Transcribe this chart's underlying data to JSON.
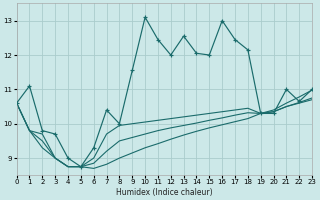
{
  "xlabel": "Humidex (Indice chaleur)",
  "bg_color": "#cce8e8",
  "grid_color": "#aacccc",
  "line_color": "#1a6b6b",
  "marker": "+",
  "xlim": [
    0,
    23
  ],
  "ylim": [
    8.5,
    13.5
  ],
  "xticks": [
    0,
    1,
    2,
    3,
    4,
    5,
    6,
    7,
    8,
    9,
    10,
    11,
    12,
    13,
    14,
    15,
    16,
    17,
    18,
    19,
    20,
    21,
    22,
    23
  ],
  "yticks": [
    9,
    10,
    11,
    12,
    13
  ],
  "x_main": [
    0,
    1,
    2,
    3,
    4,
    5,
    6,
    7,
    8,
    9,
    10,
    11,
    12,
    13,
    14,
    15,
    16,
    17,
    18,
    19,
    20,
    21,
    22,
    23
  ],
  "y_main": [
    10.6,
    11.1,
    9.8,
    9.7,
    9.0,
    8.75,
    9.3,
    10.4,
    10.0,
    11.55,
    13.1,
    12.45,
    12.0,
    12.55,
    12.05,
    12.0,
    13.0,
    12.45,
    12.15,
    10.3,
    10.3,
    11.0,
    10.65,
    11.0
  ],
  "y_trend_a": [
    10.6,
    9.8,
    9.7,
    9.0,
    8.75,
    8.75,
    9.0,
    9.7,
    9.95,
    10.0,
    10.05,
    10.1,
    10.15,
    10.2,
    10.25,
    10.3,
    10.35,
    10.4,
    10.45,
    10.3,
    10.35,
    10.5,
    10.6,
    10.7
  ],
  "y_trend_b": [
    10.6,
    9.8,
    9.5,
    9.0,
    8.75,
    8.75,
    8.85,
    9.2,
    9.5,
    9.6,
    9.7,
    9.8,
    9.88,
    9.95,
    10.02,
    10.1,
    10.17,
    10.25,
    10.32,
    10.3,
    10.35,
    10.5,
    10.62,
    10.75
  ],
  "y_trend_c": [
    10.6,
    9.8,
    9.3,
    9.0,
    8.75,
    8.75,
    8.7,
    8.82,
    9.0,
    9.15,
    9.3,
    9.42,
    9.55,
    9.67,
    9.78,
    9.88,
    9.97,
    10.06,
    10.15,
    10.3,
    10.4,
    10.6,
    10.78,
    10.98
  ]
}
